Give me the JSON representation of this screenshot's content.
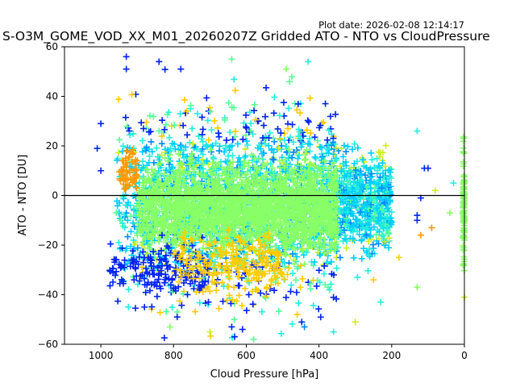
{
  "chart_data": {
    "type": "scatter",
    "title": "S-O3M_GOME_VOD_XX_M01_20260207Z Gridded ATO - NTO vs CloudPressure",
    "subtitle": "Plot date: 2026-02-08 12:14:17",
    "xlabel": "Cloud Pressure [hPa]",
    "ylabel": "ATO - NTO [DU]",
    "xlim": [
      1100,
      0
    ],
    "ylim": [
      -60,
      60
    ],
    "x_reversed": true,
    "grid": false,
    "marker": "plus",
    "xticks": [
      1000,
      800,
      600,
      400,
      200,
      0
    ],
    "yticks": [
      60,
      40,
      20,
      0,
      -20,
      -40,
      -60
    ],
    "reference_line_y": 0,
    "colors": [
      "#0022ee",
      "#0088ff",
      "#00ccff",
      "#22eedd",
      "#55ff99",
      "#88ff66",
      "#ccee22",
      "#ffcc00",
      "#ff9900"
    ],
    "clusters": [
      {
        "x_range": [
          960,
          200
        ],
        "y_center": -3,
        "y_spread": 18,
        "count": 2400,
        "color_bias": "mixed"
      },
      {
        "x_range": [
          900,
          350
        ],
        "y_center": -5,
        "y_spread": 8,
        "count": 2200,
        "color": "#88ff66"
      },
      {
        "x_range": [
          980,
          700
        ],
        "y_center": -30,
        "y_spread": 6,
        "count": 160,
        "color": "#0022ee"
      },
      {
        "x_range": [
          800,
          500
        ],
        "y_center": -27,
        "y_spread": 6,
        "count": 220,
        "color": "#ffcc00"
      },
      {
        "x_range": [
          950,
          900
        ],
        "y_center": 10,
        "y_spread": 4,
        "count": 60,
        "color": "#ff9900"
      },
      {
        "x_range": [
          4,
          0
        ],
        "y_center": -3,
        "y_spread": 12,
        "count": 120,
        "color": "#88ff66"
      }
    ],
    "outliers": [
      {
        "x": 930,
        "y": 56,
        "color": "#0022ee"
      },
      {
        "x": 930,
        "y": 51,
        "color": "#0022ee"
      },
      {
        "x": 840,
        "y": 54,
        "color": "#0022ee"
      },
      {
        "x": 780,
        "y": 51,
        "color": "#0022ee"
      },
      {
        "x": 640,
        "y": 55,
        "color": "#55ff99"
      },
      {
        "x": 490,
        "y": 51,
        "color": "#88ff66"
      },
      {
        "x": 430,
        "y": 54,
        "color": "#22eedd"
      },
      {
        "x": 130,
        "y": 26,
        "color": "#22eedd"
      },
      {
        "x": 110,
        "y": 11,
        "color": "#0022ee"
      },
      {
        "x": 100,
        "y": 11,
        "color": "#0022ee"
      },
      {
        "x": 120,
        "y": -1,
        "color": "#0022ee"
      },
      {
        "x": 130,
        "y": -8,
        "color": "#0022ee"
      },
      {
        "x": 130,
        "y": -10,
        "color": "#0022ee"
      },
      {
        "x": 120,
        "y": -16,
        "color": "#ff9900"
      },
      {
        "x": 130,
        "y": -37,
        "color": "#88ff66"
      },
      {
        "x": 80,
        "y": 2,
        "color": "#ccee22"
      },
      {
        "x": 90,
        "y": -13,
        "color": "#ff9900"
      },
      {
        "x": 40,
        "y": -7,
        "color": "#88ff66"
      },
      {
        "x": 30,
        "y": 5,
        "color": "#22eedd"
      },
      {
        "x": 0,
        "y": -41,
        "color": "#ccee22"
      },
      {
        "x": 640,
        "y": -53,
        "color": "#0022ee"
      },
      {
        "x": 580,
        "y": -58,
        "color": "#55ff99"
      },
      {
        "x": 360,
        "y": -55,
        "color": "#22eedd"
      },
      {
        "x": 300,
        "y": -51,
        "color": "#ccee22"
      },
      {
        "x": 1000,
        "y": 29,
        "color": "#0022ee"
      },
      {
        "x": 1010,
        "y": 19,
        "color": "#0022ee"
      },
      {
        "x": 1000,
        "y": 10,
        "color": "#0022ee"
      },
      {
        "x": 880,
        "y": -45,
        "color": "#0022ee"
      },
      {
        "x": 790,
        "y": -49,
        "color": "#0022ee"
      },
      {
        "x": 810,
        "y": -53,
        "color": "#88ff66"
      },
      {
        "x": 700,
        "y": -55,
        "color": "#ccee22"
      },
      {
        "x": 460,
        "y": -48,
        "color": "#ffcc00"
      },
      {
        "x": 440,
        "y": -53,
        "color": "#0088ff"
      },
      {
        "x": 250,
        "y": -34,
        "color": "#ffcc00"
      },
      {
        "x": 230,
        "y": -43,
        "color": "#22eedd"
      },
      {
        "x": 180,
        "y": -25,
        "color": "#ffcc00"
      }
    ]
  }
}
